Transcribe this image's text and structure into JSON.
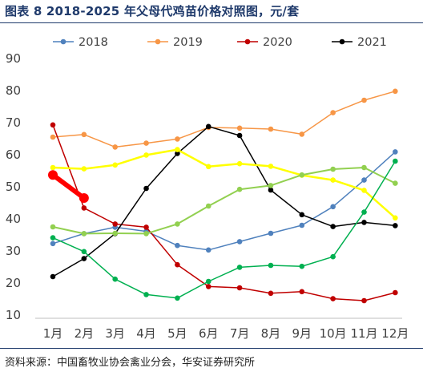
{
  "title": "图表 8 2018-2025 年父母代鸡苗价格对照图，元/套",
  "source": "资料来源：中国畜牧业协会禽业分会，华安证券研究所",
  "chart_data": {
    "type": "line",
    "title": "图表 8 2018-2025 年父母代鸡苗价格对照图，元/套",
    "xlabel": "",
    "ylabel": "",
    "ylim": [
      10,
      90
    ],
    "yticks": [
      10,
      20,
      30,
      40,
      50,
      60,
      70,
      80,
      90
    ],
    "categories": [
      "1月",
      "2月",
      "3月",
      "4月",
      "5月",
      "6月",
      "7月",
      "8月",
      "9月",
      "10月",
      "11月",
      "12月"
    ],
    "grid": false,
    "legend": "top",
    "series": [
      {
        "name": "2018",
        "color": "#4f81bd",
        "marker": true,
        "width": 1.5,
        "legend": true,
        "values": [
          32.3,
          35.4,
          37.4,
          36.1,
          31.7,
          30.3,
          32.9,
          35.5,
          38.0,
          43.8,
          52.1,
          60.9
        ]
      },
      {
        "name": "2019",
        "color": "#f79646",
        "marker": true,
        "width": 1.5,
        "legend": true,
        "values": [
          65.5,
          66.3,
          62.4,
          63.6,
          64.9,
          68.5,
          68.3,
          68.0,
          66.4,
          73.1,
          77.0,
          79.8
        ]
      },
      {
        "name": "2020",
        "color": "#c00000",
        "marker": true,
        "width": 1.5,
        "legend": true,
        "values": [
          69.3,
          43.4,
          38.4,
          37.4,
          25.7,
          18.9,
          18.5,
          16.8,
          17.3,
          15.1,
          14.5,
          17.0
        ]
      },
      {
        "name": "2021",
        "color": "#000000",
        "marker": true,
        "width": 1.5,
        "legend": true,
        "values": [
          22.0,
          27.6,
          35.4,
          49.5,
          60.4,
          68.8,
          66.0,
          49.0,
          41.3,
          37.6,
          38.9,
          37.9
        ]
      },
      {
        "name": "",
        "color": "#ffff00",
        "marker": true,
        "width": 2.5,
        "legend": false,
        "values": [
          56.0,
          55.6,
          56.8,
          59.9,
          61.6,
          56.3,
          57.2,
          56.4,
          53.6,
          52.1,
          48.9,
          40.3
        ]
      },
      {
        "name": "",
        "color": "#92d050",
        "marker": true,
        "width": 2,
        "legend": false,
        "values": [
          37.5,
          35.4,
          35.5,
          35.4,
          38.4,
          44.0,
          49.2,
          50.4,
          53.7,
          55.5,
          56.0,
          51.1
        ]
      },
      {
        "name": "",
        "color": "#00b050",
        "marker": true,
        "width": 1.5,
        "legend": false,
        "values": [
          34.1,
          29.8,
          21.2,
          16.4,
          15.3,
          20.5,
          24.9,
          25.5,
          25.2,
          28.2,
          42.1,
          58.0
        ]
      },
      {
        "name": "",
        "color": "#ff0000",
        "marker": true,
        "width": 6,
        "markerSize": 6,
        "legend": false,
        "values": [
          53.7,
          46.5,
          null,
          null,
          null,
          null,
          null,
          null,
          null,
          null,
          null,
          null
        ]
      }
    ]
  }
}
